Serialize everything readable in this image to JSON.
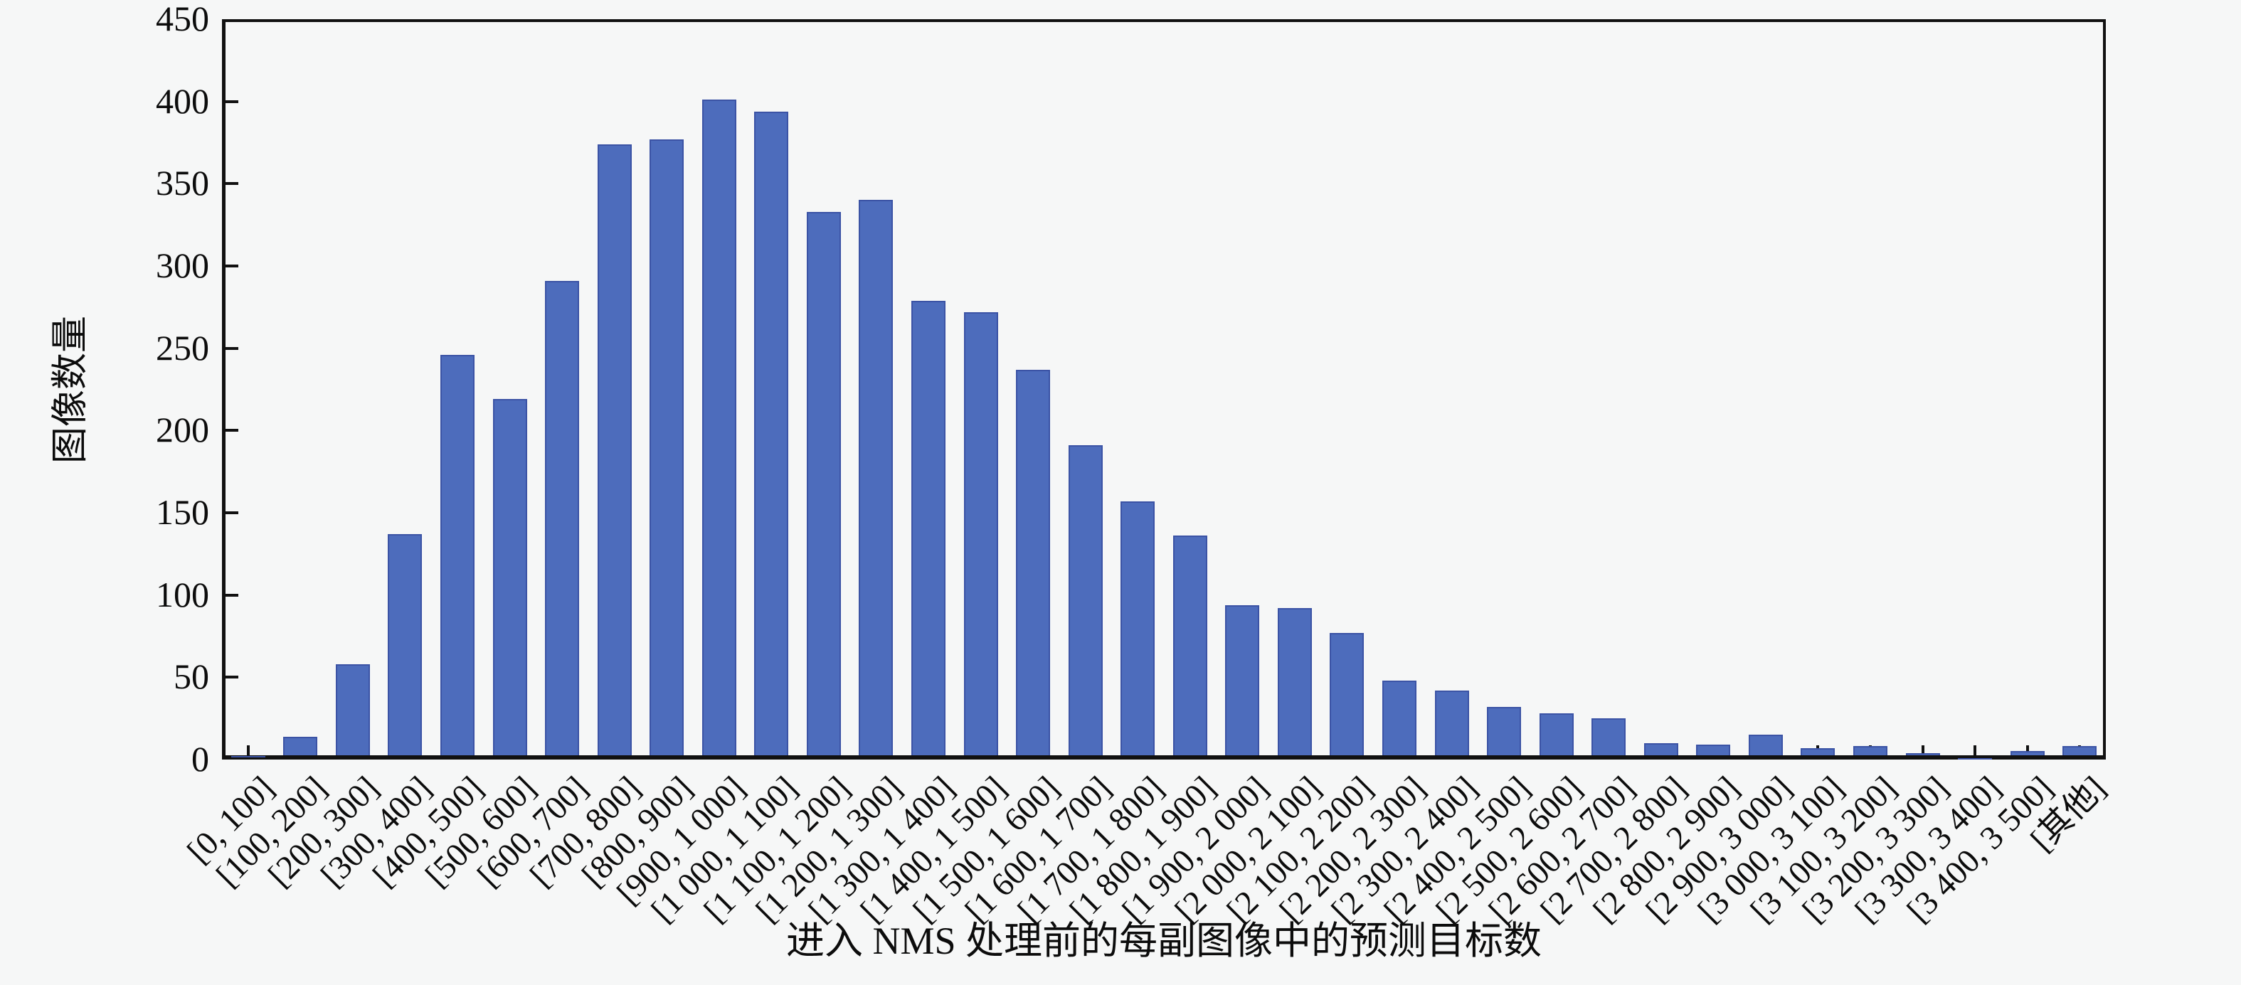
{
  "chart_data": {
    "type": "bar",
    "title": "",
    "xlabel": "进入 NMS 处理前的每副图像中的预测目标数",
    "ylabel": "图像数量",
    "categories": [
      "[0, 100]",
      "[100, 200]",
      "[200, 300]",
      "[300, 400]",
      "[400, 500]",
      "[500, 600]",
      "[600, 700]",
      "[700, 800]",
      "[800, 900]",
      "[900, 1 000]",
      "[1 000, 1 100]",
      "[1 100, 1 200]",
      "[1 200, 1 300]",
      "[1 300, 1 400]",
      "[1 400, 1 500]",
      "[1 500, 1 600]",
      "[1 600, 1 700]",
      "[1 700, 1 800]",
      "[1 800, 1 900]",
      "[1 900, 2 000]",
      "[2 000, 2 100]",
      "[2 100, 2 200]",
      "[2 200, 2 300]",
      "[2 300, 2 400]",
      "[2 400, 2 500]",
      "[2 500, 2 600]",
      "[2 600, 2 700]",
      "[2 700, 2 800]",
      "[2 800, 2 900]",
      "[2 900, 3 000]",
      "[3 000, 3 100]",
      "[3 100, 3 200]",
      "[3 200, 3 300]",
      "[3 300, 3 400]",
      "[3 400, 3 500]",
      "[其他]"
    ],
    "values": [
      2,
      14,
      58,
      137,
      246,
      219,
      291,
      374,
      377,
      401,
      394,
      333,
      340,
      279,
      272,
      237,
      191,
      157,
      136,
      94,
      92,
      77,
      48,
      42,
      32,
      28,
      25,
      10,
      9,
      15,
      7,
      8,
      4,
      1,
      5,
      8
    ],
    "ylim": [
      0,
      450
    ],
    "y_ticks": [
      0,
      50,
      100,
      150,
      200,
      250,
      300,
      350,
      400,
      450
    ],
    "grid": false,
    "legend": null,
    "bar_color": "#4d6cbc",
    "bar_edge_color": "#3b53a5",
    "axis_color": "#111111",
    "background_color": "#f6f7f7"
  }
}
